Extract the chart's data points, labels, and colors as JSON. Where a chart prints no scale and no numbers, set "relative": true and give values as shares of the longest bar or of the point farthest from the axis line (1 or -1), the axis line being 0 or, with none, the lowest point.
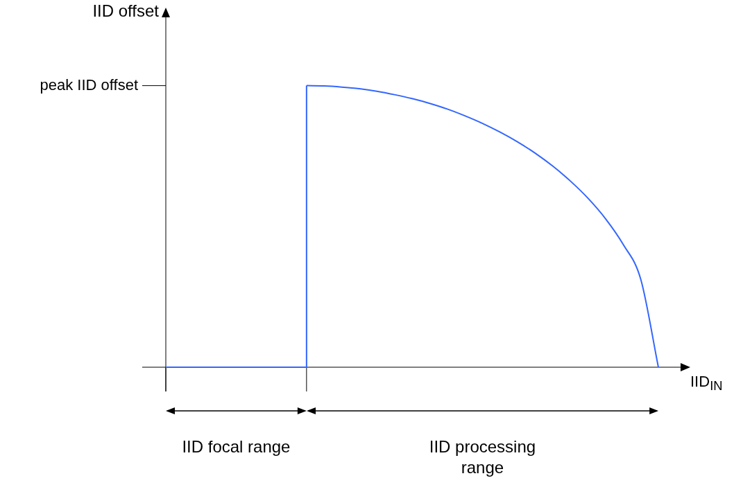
{
  "chart_data": {
    "type": "line",
    "relative": true,
    "xlabel": "IID$_{IN}$",
    "ylabel": "IID offset",
    "categories": [
      null,
      null,
      null,
      null,
      null,
      null,
      null,
      null,
      null,
      null,
      null,
      null,
      null,
      null,
      null,
      null,
      null,
      null,
      null,
      null,
      null,
      null,
      null,
      null,
      null,
      null,
      null,
      null,
      null
    ],
    "series": [
      {
        "type": "step",
        "color": "#3366ff",
        "values": [
          0,
          0,
          0,
          0,
          0,
          0,
          0,
          0,
          1,
          null,
          null,
          null,
          null,
          null,
          null,
          null,
          null,
          null,
          null,
          null,
          null,
          null,
          null,
          null,
          null,
          null,
          null,
          null,
          null
        ]
      },
      {
        "type": "line",
        "color": "#3366ff",
        "values": [
          null,
          null,
          null,
          null,
          null,
          null,
          null,
          null,
          1,
          0.999,
          0.995,
          0.989,
          0.98,
          0.968,
          0.954,
          0.937,
          0.917,
          0.893,
          0.866,
          0.835,
          0.8,
          0.76,
          0.714,
          0.661,
          0.6,
          0.527,
          0.436,
          0.312,
          0
        ]
      }
    ],
    "annotations": [
      "peak IID offset",
      "IID focal range",
      "IID processing range"
    ],
    "legend": false,
    "marker": "none"
  }
}
